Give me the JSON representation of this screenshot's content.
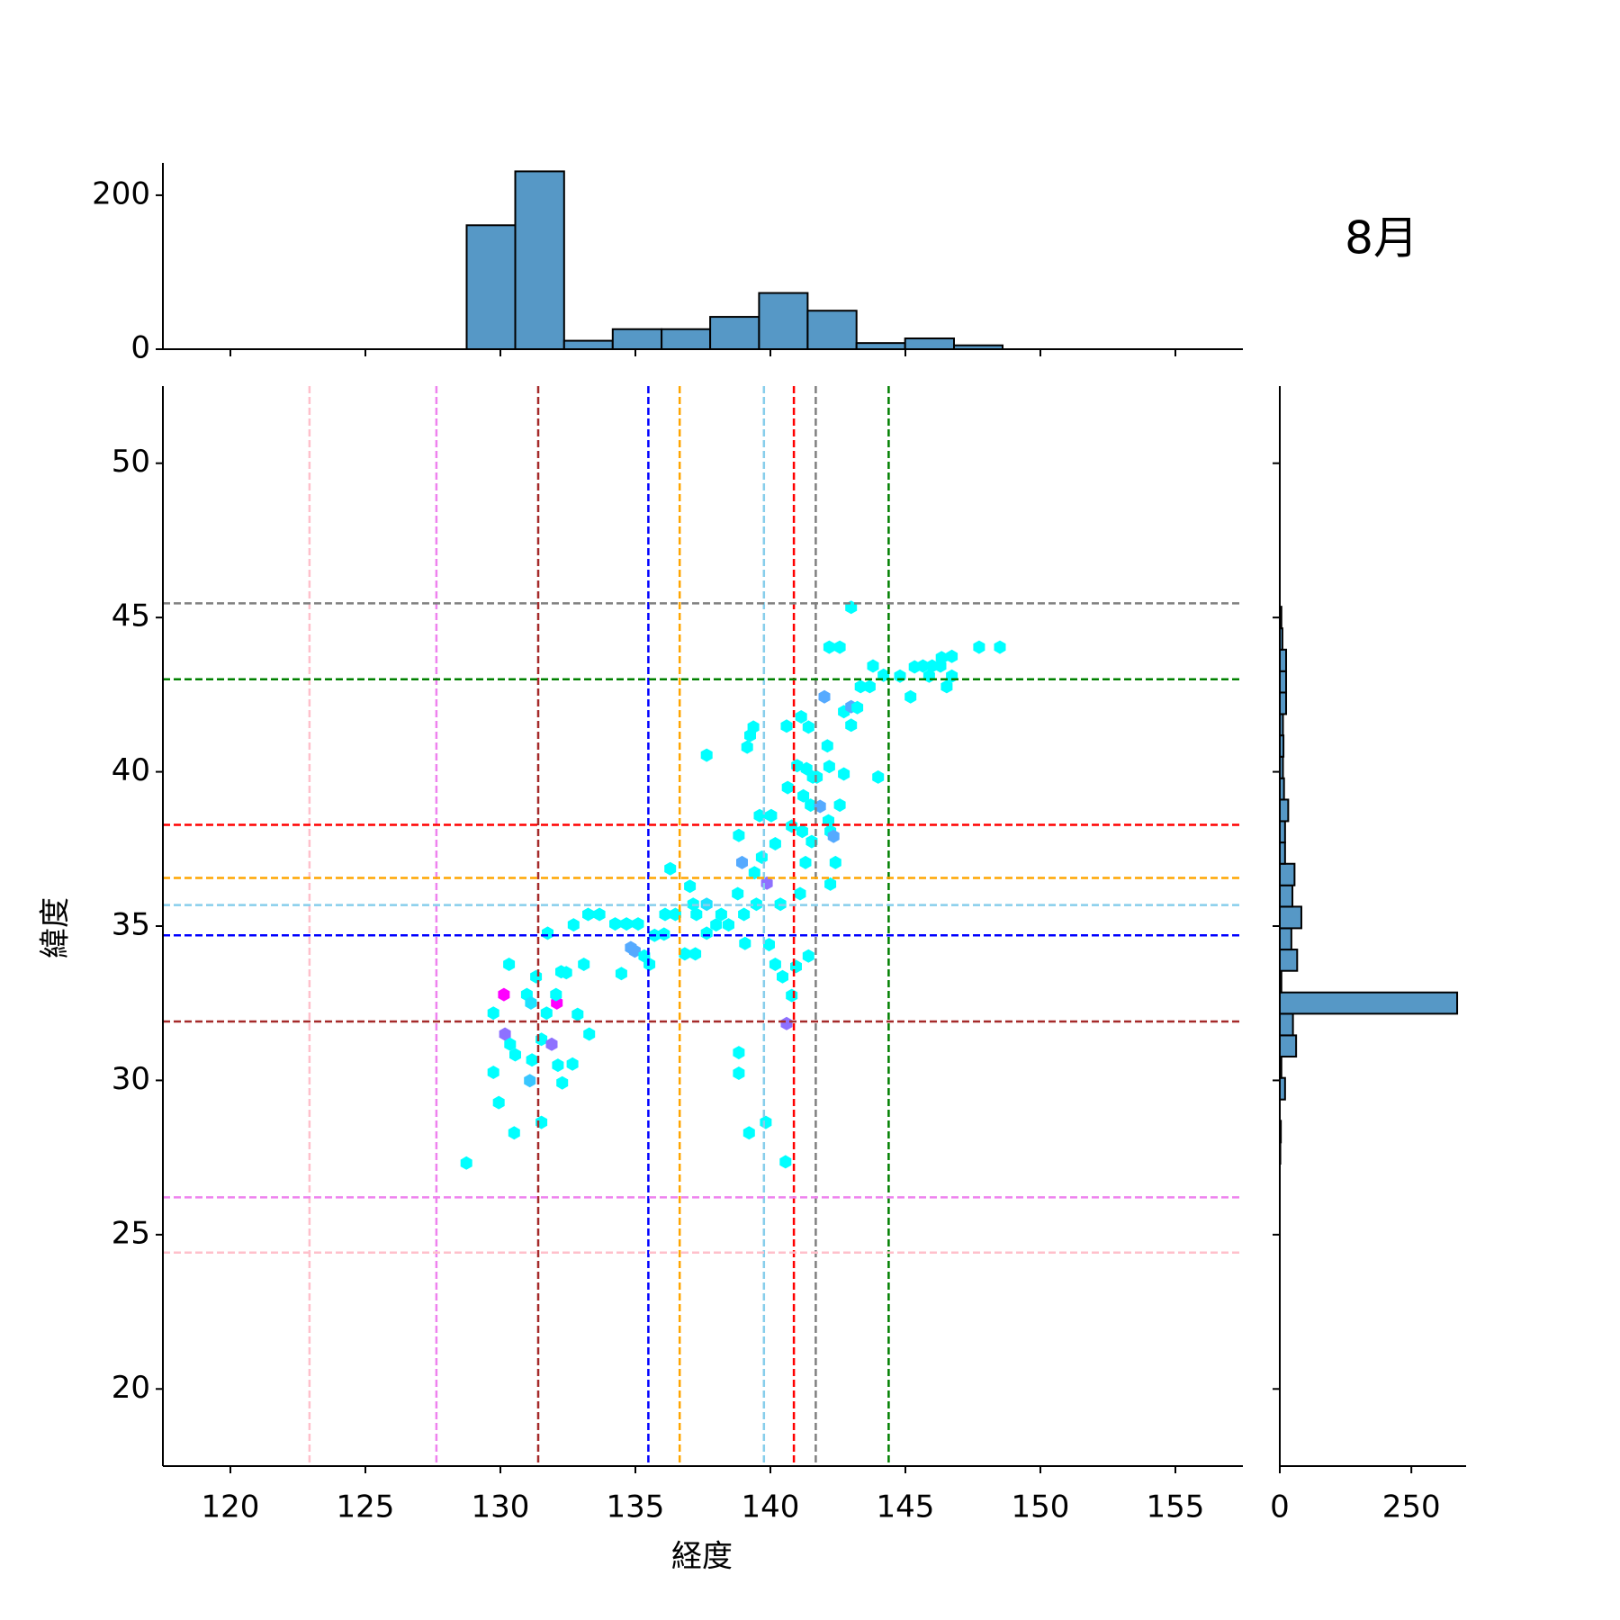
{
  "chart_data": [
    {
      "type": "hexbin",
      "title": "8月",
      "x_label": "経度",
      "y_label": "緯度",
      "xlim": [
        117.5,
        157.5
      ],
      "ylim": [
        17.5,
        52.5
      ],
      "xticks": [
        120,
        125,
        130,
        135,
        140,
        145,
        150,
        155
      ],
      "yticks": [
        20,
        25,
        30,
        35,
        40,
        45,
        50
      ],
      "cmap": [
        "#00ffff",
        "#ff00ff"
      ],
      "clim": [
        1,
        10
      ],
      "x": [
        128.74,
        129.74,
        129.94,
        129.74,
        130.32,
        130.51,
        130.13,
        130.17,
        130.36,
        130.55,
        130.98,
        131.13,
        131.17,
        131.09,
        131.52,
        131.32,
        131.52,
        131.71,
        131.75,
        131.9,
        132.09,
        132.25,
        132.06,
        132.13,
        132.29,
        132.44,
        132.67,
        132.71,
        132.86,
        133.09,
        133.29,
        133.25,
        133.67,
        134.25,
        134.48,
        134.67,
        135.1,
        134.83,
        134.98,
        135.33,
        135.52,
        135.71,
        136.1,
        136.29,
        136.06,
        136.48,
        136.83,
        137.02,
        137.14,
        137.26,
        137.22,
        137.64,
        137.64,
        137.64,
        137.99,
        138.18,
        138.45,
        138.79,
        138.83,
        138.83,
        138.83,
        138.95,
        139.02,
        139.06,
        139.14,
        139.21,
        139.25,
        139.37,
        139.41,
        139.48,
        139.6,
        139.68,
        139.83,
        139.87,
        139.95,
        140.03,
        140.18,
        140.18,
        140.37,
        140.45,
        140.56,
        140.6,
        140.6,
        140.64,
        140.79,
        140.79,
        140.95,
        140.99,
        141.1,
        141.14,
        141.18,
        141.22,
        141.3,
        141.34,
        141.41,
        141.41,
        141.49,
        141.53,
        141.57,
        141.72,
        141.84,
        142.0,
        142.11,
        142.15,
        142.18,
        142.18,
        142.22,
        142.22,
        142.41,
        142.57,
        142.34,
        142.57,
        142.72,
        142.72,
        142.99,
        142.99,
        142.99,
        143.22,
        143.34,
        143.68,
        143.8,
        143.99,
        144.19,
        144.8,
        145.19,
        145.34,
        145.65,
        145.88,
        145.99,
        146.3,
        146.34,
        146.53,
        146.72,
        146.72,
        147.73,
        148.5
      ],
      "y": [
        27.32,
        30.26,
        29.28,
        32.18,
        33.76,
        28.3,
        32.78,
        31.5,
        31.17,
        30.83,
        32.78,
        32.51,
        30.66,
        29.99,
        28.64,
        33.36,
        31.33,
        32.18,
        34.77,
        31.17,
        32.51,
        33.52,
        32.78,
        30.49,
        29.92,
        33.49,
        30.53,
        35.04,
        32.14,
        33.76,
        31.5,
        35.38,
        35.38,
        35.07,
        33.46,
        35.07,
        35.07,
        34.3,
        34.19,
        34.03,
        33.76,
        34.7,
        35.38,
        36.86,
        34.74,
        35.38,
        34.1,
        36.29,
        35.71,
        35.38,
        34.1,
        40.54,
        35.71,
        34.77,
        35.04,
        35.38,
        35.04,
        36.05,
        37.94,
        30.9,
        30.23,
        37.06,
        35.38,
        34.44,
        40.8,
        28.3,
        41.18,
        41.45,
        36.73,
        35.71,
        38.58,
        37.23,
        28.64,
        36.39,
        34.4,
        38.58,
        37.67,
        33.76,
        35.71,
        33.36,
        27.36,
        31.84,
        41.48,
        39.49,
        32.75,
        38.24,
        33.69,
        40.2,
        36.05,
        41.78,
        38.07,
        39.22,
        37.06,
        40.1,
        41.45,
        34.03,
        38.92,
        37.74,
        39.83,
        39.83,
        38.88,
        42.43,
        40.84,
        38.41,
        40.17,
        44.04,
        38.07,
        36.36,
        37.06,
        44.04,
        37.91,
        38.92,
        39.93,
        41.95,
        41.51,
        42.11,
        45.33,
        42.08,
        42.76,
        42.76,
        43.43,
        39.83,
        43.13,
        43.1,
        42.43,
        43.4,
        43.43,
        43.1,
        43.43,
        43.43,
        43.7,
        42.76,
        43.74,
        43.1,
        44.04,
        44.04
      ],
      "values": [
        1,
        1,
        1,
        1,
        1,
        1,
        10,
        6,
        1,
        1,
        1,
        2,
        1,
        3,
        1,
        1,
        1,
        1,
        1,
        6,
        10,
        1,
        1,
        1,
        1,
        1,
        1,
        1,
        1,
        1,
        1,
        1,
        1,
        1,
        1,
        1,
        1,
        4,
        4,
        1,
        1,
        1,
        1,
        1,
        1,
        1,
        1,
        1,
        1,
        1,
        1,
        1,
        2,
        1,
        1,
        1,
        1,
        1,
        1,
        1,
        1,
        4,
        1,
        1,
        1,
        1,
        1,
        1,
        1,
        1,
        1,
        1,
        1,
        6,
        1,
        1,
        1,
        1,
        1,
        1,
        1,
        6,
        1,
        1,
        1,
        1,
        1,
        1,
        1,
        1,
        1,
        1,
        1,
        1,
        1,
        1,
        1,
        1,
        1,
        1,
        4,
        4,
        1,
        1,
        1,
        1,
        1,
        1,
        1,
        1,
        4,
        1,
        1,
        1,
        1,
        4,
        1,
        1,
        1,
        1,
        1,
        1,
        1,
        1,
        1,
        1,
        1,
        1,
        1,
        1,
        1,
        1,
        1,
        1,
        1,
        1
      ],
      "vlines": [
        {
          "value": 122.93,
          "color": "pink"
        },
        {
          "value": 127.63,
          "color": "violet"
        },
        {
          "value": 131.4,
          "color": "brown"
        },
        {
          "value": 135.48,
          "color": "blue"
        },
        {
          "value": 136.64,
          "color": "orange"
        },
        {
          "value": 139.76,
          "color": "skyblue"
        },
        {
          "value": 140.87,
          "color": "red"
        },
        {
          "value": 141.68,
          "color": "gray"
        },
        {
          "value": 144.38,
          "color": "green"
        }
      ],
      "hlines": [
        {
          "value": 45.46,
          "color": "gray"
        },
        {
          "value": 43.0,
          "color": "green"
        },
        {
          "value": 38.28,
          "color": "red"
        },
        {
          "value": 36.56,
          "color": "orange"
        },
        {
          "value": 35.68,
          "color": "skyblue"
        },
        {
          "value": 34.7,
          "color": "blue"
        },
        {
          "value": 31.91,
          "color": "brown"
        },
        {
          "value": 26.21,
          "color": "violet"
        },
        {
          "value": 24.42,
          "color": "pink"
        }
      ]
    },
    {
      "type": "histogram",
      "orientation": "vertical",
      "color": "#5698c6",
      "bins": [
        128.75,
        130.55,
        132.36,
        134.16,
        135.97,
        137.77,
        139.58,
        141.38,
        143.19,
        144.99,
        146.8,
        148.6
      ],
      "values": [
        161,
        231,
        11,
        26,
        26,
        42,
        73,
        50,
        8,
        14,
        5
      ],
      "xlim": [
        117.5,
        157.5
      ],
      "xticks": [
        120,
        125,
        130,
        135,
        140,
        145,
        150,
        155
      ],
      "ylim": [
        0,
        242
      ],
      "yticks": [
        0,
        200
      ]
    },
    {
      "type": "histogram",
      "orientation": "horizontal",
      "color": "#5698c6",
      "bins": [
        27.3,
        27.99,
        28.69,
        29.38,
        30.08,
        30.77,
        31.46,
        32.16,
        32.85,
        33.55,
        34.24,
        34.93,
        35.63,
        36.32,
        37.02,
        37.71,
        38.4,
        39.1,
        39.79,
        40.49,
        41.18,
        41.87,
        42.57,
        43.26,
        43.96,
        44.65,
        45.35
      ],
      "values": [
        1,
        2,
        0,
        10,
        3,
        31,
        25,
        337,
        3,
        33,
        22,
        41,
        24,
        28,
        10,
        10,
        16,
        8,
        6,
        7,
        6,
        12,
        12,
        12,
        5,
        3
      ],
      "xlim": [
        0,
        354
      ],
      "xticks": [
        0,
        250
      ],
      "ylim": [
        17.5,
        52.5
      ],
      "yticks": [
        20,
        25,
        30,
        35,
        40,
        45,
        50
      ]
    }
  ]
}
